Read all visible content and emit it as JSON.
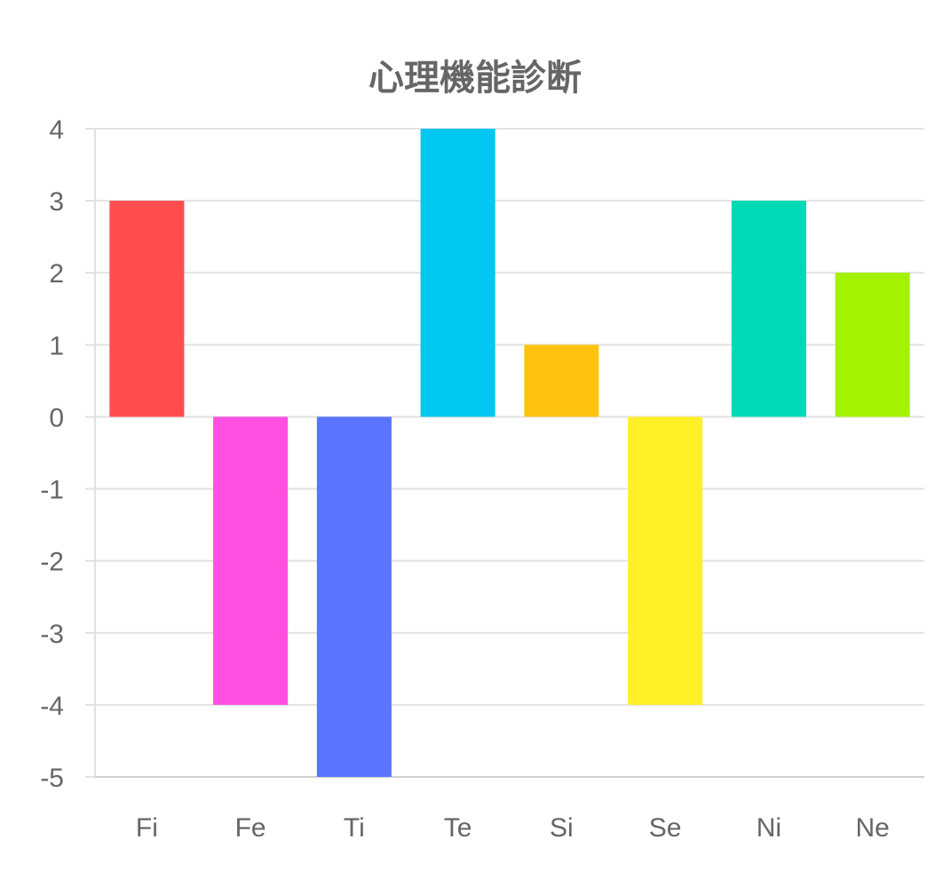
{
  "chart_data": {
    "type": "bar",
    "title": "心理機能診断",
    "categories": [
      "Fi",
      "Fe",
      "Ti",
      "Te",
      "Si",
      "Se",
      "Ni",
      "Ne"
    ],
    "values": [
      3,
      -4,
      -5,
      4,
      1,
      -4,
      3,
      2
    ],
    "colors": [
      "#ff4d4f",
      "#ff4fe1",
      "#5b74ff",
      "#00c8f0",
      "#ffc210",
      "#fff028",
      "#00d9b5",
      "#a3f200"
    ],
    "ylim": [
      -5,
      4
    ],
    "yticks": [
      "4",
      "3",
      "2",
      "1",
      "0",
      "-1",
      "-2",
      "-3",
      "-4",
      "-5"
    ],
    "grid": true,
    "legend": "none",
    "xlabel": "",
    "ylabel": ""
  }
}
